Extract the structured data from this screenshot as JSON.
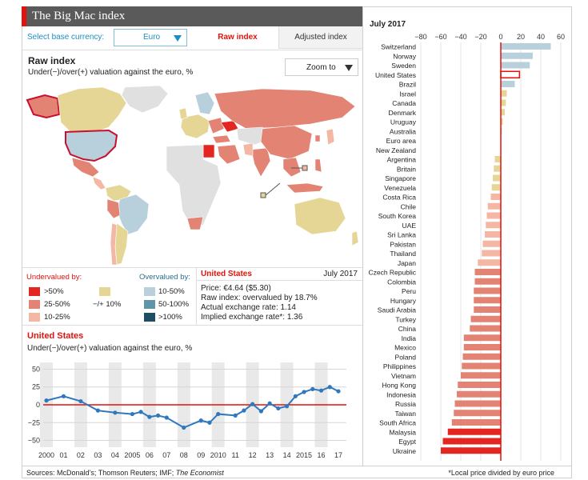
{
  "header": {
    "title": "The Big Mac index"
  },
  "controls": {
    "base_currency_label": "Select base currency:",
    "base_currency_value": "Euro",
    "tab_raw": "Raw index",
    "tab_adjusted": "Adjusted index"
  },
  "map": {
    "title": "Raw index",
    "subtitle": "Under(−)/over(+) valuation against the euro, %",
    "zoom_label": "Zoom to"
  },
  "legend": {
    "undervalued_title": "Undervalued by:",
    "overvalued_title": "Overvalued by:",
    "under": [
      {
        "label": ">50%",
        "color": "#e3261f"
      },
      {
        "label": "25-50%",
        "color": "#e28374"
      },
      {
        "label": "10-25%",
        "color": "#f4b7a4"
      }
    ],
    "neutral": {
      "label": "−/+ 10%",
      "color": "#e5d696"
    },
    "over": [
      {
        "label": "10-50%",
        "color": "#b8cfdc"
      },
      {
        "label": "50-100%",
        "color": "#5e96a8"
      },
      {
        "label": ">100%",
        "color": "#1e4e63"
      }
    ]
  },
  "info": {
    "country": "United States",
    "date": "July 2017",
    "price": "Price: €4.64 ($5.30)",
    "raw_index": "Raw index: overvalued by 18.7%",
    "actual_rate": "Actual exchange rate: 1.14",
    "implied_rate": "Implied exchange rate*: 1.36"
  },
  "line_chart": {
    "title": "United States",
    "subtitle": "Under(−)/over(+) valuation against the euro, %"
  },
  "chart_data": [
    {
      "type": "line",
      "title": "United States",
      "ylabel": "Under(−)/over(+) valuation against the euro, %",
      "ylim": [
        -55,
        55
      ],
      "yticks": [
        50,
        25,
        0,
        -25,
        -50
      ],
      "ytick_labels": [
        "50",
        "25",
        "0",
        "−25",
        "−50"
      ],
      "x_tick_labels": [
        "2000",
        "01",
        "02",
        "03",
        "04",
        "2005",
        "06",
        "07",
        "08",
        "09",
        "2010",
        "11",
        "12",
        "13",
        "14",
        "2015",
        "16",
        "17"
      ],
      "series": [
        {
          "color": "#2f78bd",
          "x": [
            2000.0,
            2001.0,
            2002.0,
            2003.0,
            2004.0,
            2005.0,
            2005.5,
            2006.0,
            2006.5,
            2007.0,
            2008.0,
            2009.0,
            2009.5,
            2010.0,
            2011.0,
            2011.5,
            2012.0,
            2012.5,
            2013.0,
            2013.5,
            2014.0,
            2014.5,
            2015.0,
            2015.5,
            2016.0,
            2016.5,
            2017.0
          ],
          "values": [
            6,
            12,
            5,
            -8,
            -11,
            -13,
            -10,
            -17,
            -15,
            -18,
            -32,
            -22,
            -25,
            -13,
            -15,
            -8,
            1,
            -9,
            2,
            -5,
            -2,
            12,
            18,
            22,
            20,
            25,
            19
          ]
        }
      ]
    },
    {
      "type": "bar",
      "title": "July 2017",
      "orientation": "horizontal",
      "xlim": [
        -80,
        60
      ],
      "xticks": [
        -80,
        -60,
        -40,
        -20,
        0,
        20,
        40,
        60
      ],
      "xtick_labels": [
        "−80",
        "−60",
        "−40",
        "−20",
        "0",
        "20",
        "40",
        "60"
      ],
      "categories": [
        "Switzerland",
        "Norway",
        "Sweden",
        "United States",
        "Brazil",
        "Israel",
        "Canada",
        "Denmark",
        "Uruguay",
        "Australia",
        "Euro area",
        "New Zealand",
        "Argentina",
        "Britain",
        "Singapore",
        "Venezuela",
        "Costa Rica",
        "Chile",
        "South Korea",
        "UAE",
        "Sri Lanka",
        "Pakistan",
        "Thailand",
        "Japan",
        "Czech Republic",
        "Colombia",
        "Peru",
        "Hungary",
        "Saudi Arabia",
        "Turkey",
        "China",
        "India",
        "Mexico",
        "Poland",
        "Philippines",
        "Vietnam",
        "Hong Kong",
        "Indonesia",
        "Russia",
        "Taiwan",
        "South Africa",
        "Malaysia",
        "Egypt",
        "Ukraine"
      ],
      "values": [
        50,
        32,
        29,
        18.7,
        14,
        6,
        5,
        4,
        2,
        1,
        0,
        0,
        -6,
        -7,
        -8,
        -9,
        -10,
        -13,
        -14,
        -15,
        -16,
        -18,
        -19,
        -23,
        -26,
        -26,
        -27,
        -27,
        -27,
        -30,
        -31,
        -37,
        -37,
        -38,
        -39,
        -40,
        -43,
        -44,
        -46,
        -47,
        -49,
        -53,
        -58,
        -60
      ],
      "highlight": "United States"
    }
  ],
  "footer": {
    "sources": "Sources: McDonald’s; Thomson Reuters; IMF; ",
    "sources_pub": "The Economist",
    "note": "*Local price divided by euro price"
  }
}
